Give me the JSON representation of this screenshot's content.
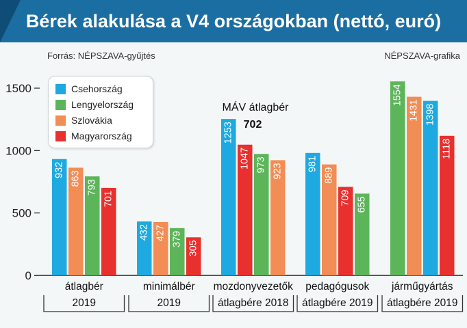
{
  "header": {
    "title": "Bérek alakulása a V4 országokban (nettó, euró)",
    "source": "Forrás: NÉPSZAVA-gyűjtés",
    "credit": "NÉPSZAVA-grafika"
  },
  "colors": {
    "header_bg": "#1b6ea1",
    "Csehország": "#1fa9e1",
    "Lengyelország": "#5db55a",
    "Szlovákia": "#f28d55",
    "Magyarország": "#e8302e"
  },
  "chart_data": {
    "type": "bar",
    "title": "Bérek alakulása a V4 országokban (nettó, euró)",
    "ylim": [
      0,
      1600
    ],
    "yticks": [
      0,
      500,
      1000,
      1500
    ],
    "grid": false,
    "legend_position": "top-left",
    "legend": [
      "Csehország",
      "Lengyelország",
      "Szlovákia",
      "Magyarország"
    ],
    "groups": [
      {
        "label": [
          "átlagbér",
          "2019"
        ],
        "bars": [
          {
            "series": "Csehország",
            "value": 932
          },
          {
            "series": "Szlovákia",
            "value": 863
          },
          {
            "series": "Lengyelország",
            "value": 793
          },
          {
            "series": "Magyarország",
            "value": 701
          }
        ]
      },
      {
        "label": [
          "minimálbér",
          "2019"
        ],
        "bars": [
          {
            "series": "Csehország",
            "value": 432
          },
          {
            "series": "Szlovákia",
            "value": 427
          },
          {
            "series": "Lengyelország",
            "value": 379
          },
          {
            "series": "Magyarország",
            "value": 305
          }
        ]
      },
      {
        "label": [
          "mozdonyvezetők",
          "átlagbére 2018"
        ],
        "bars": [
          {
            "series": "Csehország",
            "value": 1253
          },
          {
            "series": "Magyarország",
            "value": 1047
          },
          {
            "series": "Lengyelország",
            "value": 973
          },
          {
            "series": "Szlovákia",
            "value": 923
          }
        ]
      },
      {
        "label": [
          "pedagógusok",
          "átlagbére 2019"
        ],
        "bars": [
          {
            "series": "Csehország",
            "value": 981
          },
          {
            "series": "Szlovákia",
            "value": 889
          },
          {
            "series": "Magyarország",
            "value": 709
          },
          {
            "series": "Lengyelország",
            "value": 655
          }
        ]
      },
      {
        "label": [
          "járműgyártás",
          "átlagbére 2019"
        ],
        "bars": [
          {
            "series": "Lengyelország",
            "value": 1554
          },
          {
            "series": "Szlovákia",
            "value": 1431
          },
          {
            "series": "Csehország",
            "value": 1398
          },
          {
            "series": "Magyarország",
            "value": 1118
          }
        ]
      }
    ],
    "annotations": [
      {
        "text": "MÁV átlagbér",
        "value": "702",
        "group": 2
      }
    ]
  }
}
